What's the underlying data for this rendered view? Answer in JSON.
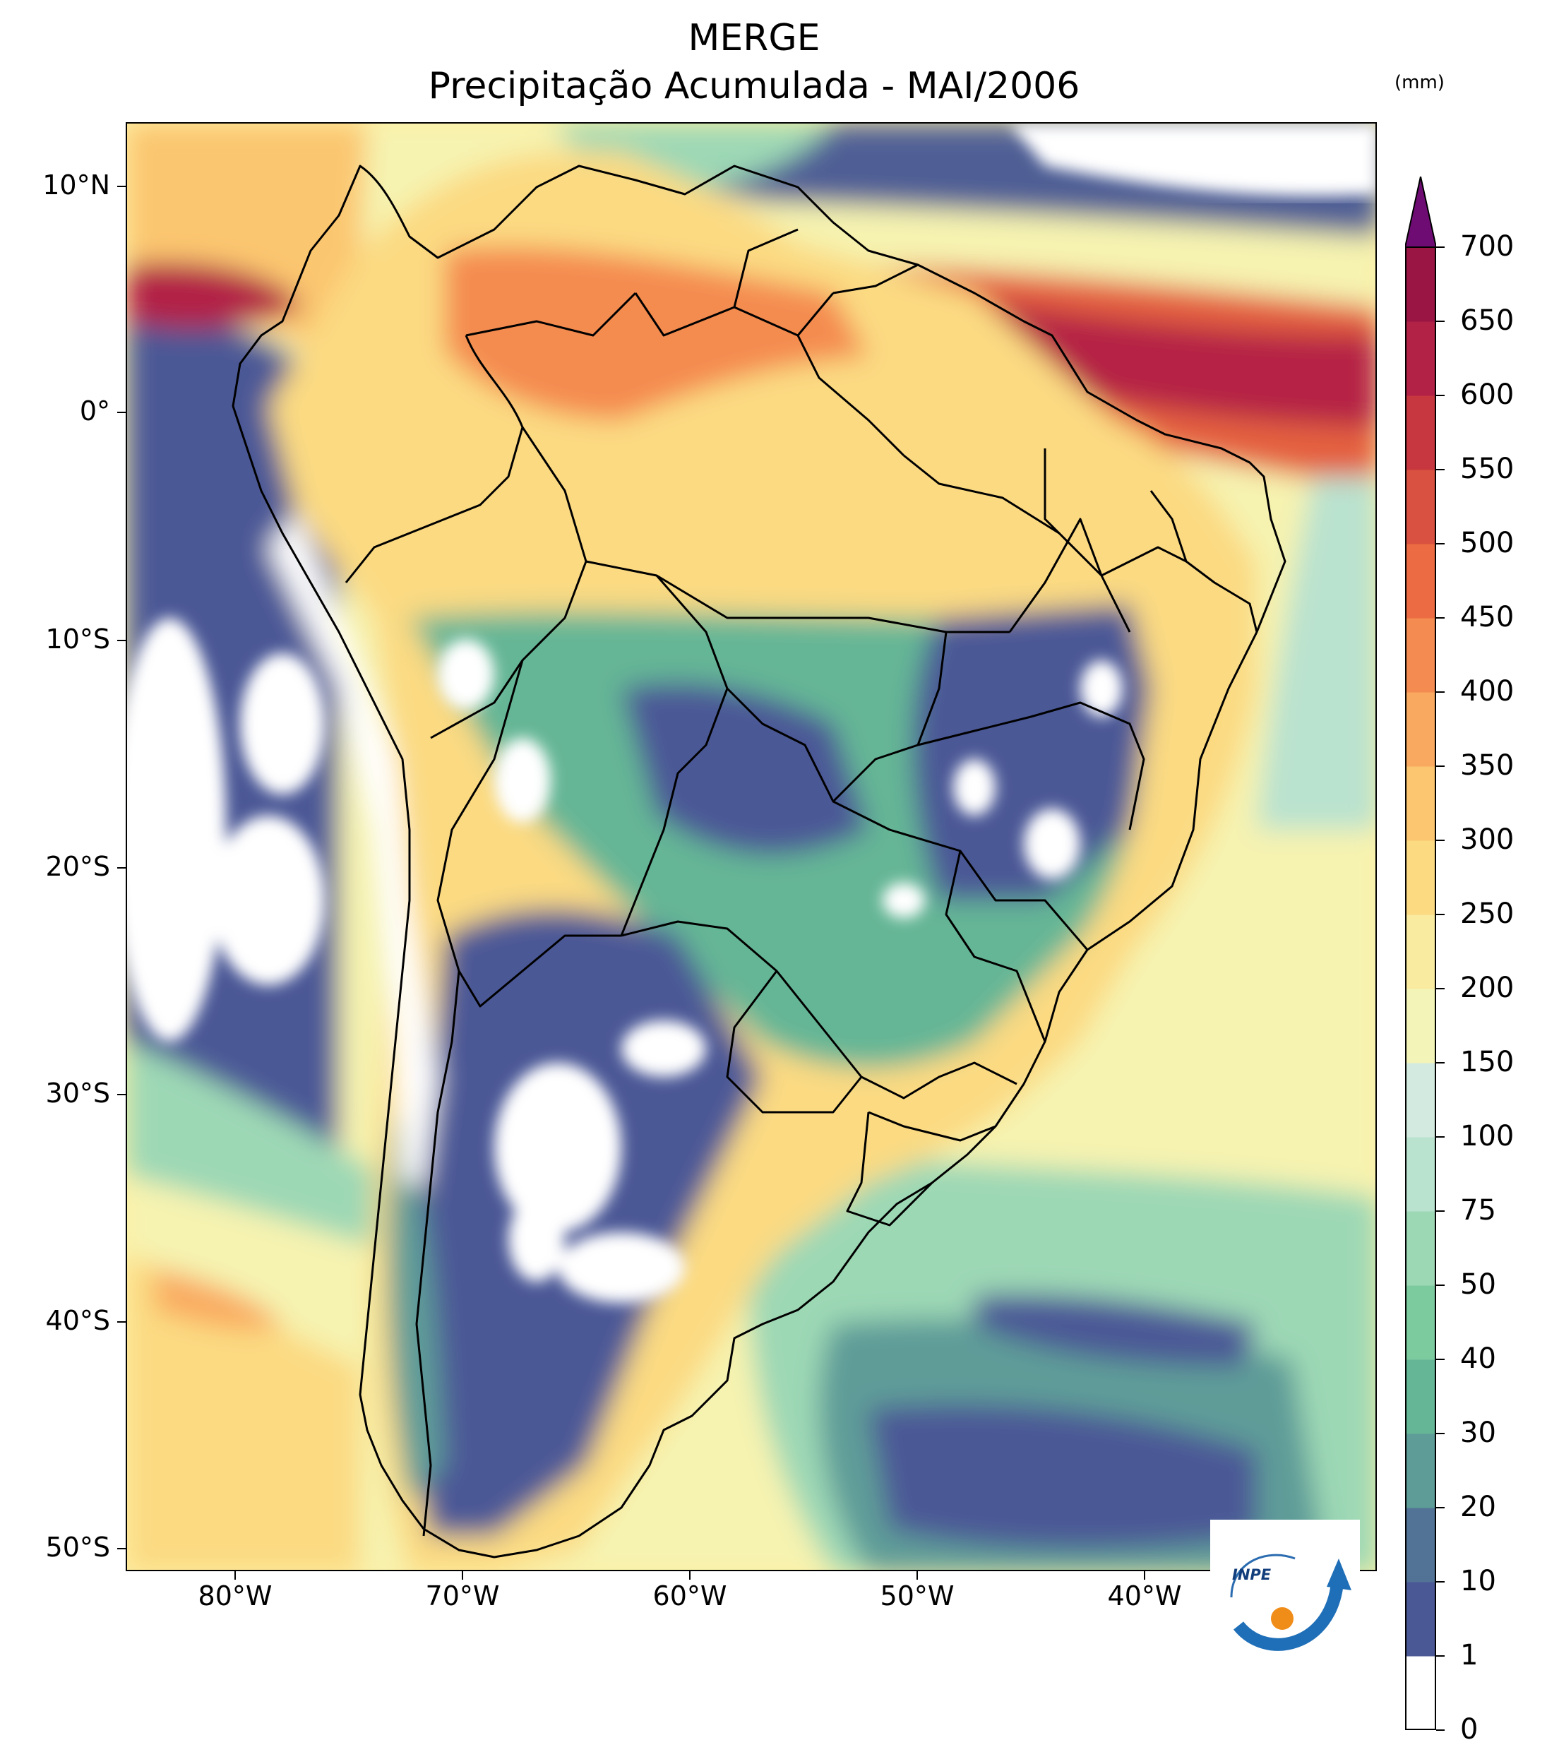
{
  "title_line1": "MERGE",
  "title_line2": "Precipitação Acumulada - MAI/2006",
  "colorbar": {
    "unit": "(mm)",
    "levels": [
      "0",
      "1",
      "10",
      "20",
      "30",
      "40",
      "50",
      "75",
      "100",
      "150",
      "200",
      "250",
      "300",
      "350",
      "400",
      "450",
      "500",
      "550",
      "600",
      "650",
      "700"
    ],
    "colors": [
      "#ffffff",
      "#4b5896",
      "#527396",
      "#5e9c98",
      "#65b696",
      "#7ccb9f",
      "#9dd8b5",
      "#b9e2cf",
      "#d2eae0",
      "#f3f5b8",
      "#f9eb9f",
      "#fbda82",
      "#fbc66f",
      "#f9aa60",
      "#f48b50",
      "#ec6b42",
      "#d95140",
      "#c7373f",
      "#b22247",
      "#9a1543"
    ],
    "extend_color": "#6f0c74"
  },
  "axes": {
    "y_labels": [
      "10°N",
      "0°",
      "10°S",
      "20°S",
      "30°S",
      "40°S",
      "50°S"
    ],
    "x_labels": [
      "80°W",
      "70°W",
      "60°W",
      "50°W",
      "40°W"
    ]
  },
  "logo_text": "INPE"
}
